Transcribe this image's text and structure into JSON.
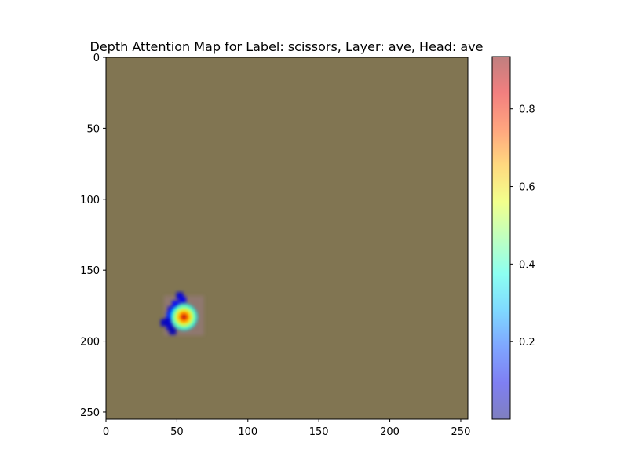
{
  "chart_data": {
    "type": "heatmap",
    "title": "Depth Attention Map for Label: scissors, Layer: ave, Head: ave",
    "xlabel": "",
    "ylabel": "",
    "xlim": [
      0,
      255
    ],
    "ylim": [
      255,
      0
    ],
    "x_ticks": [
      0,
      50,
      100,
      150,
      200,
      250
    ],
    "y_ticks": [
      0,
      50,
      100,
      150,
      200,
      250
    ],
    "background_color": "#817552",
    "hotspot": {
      "x": 55,
      "y": 183,
      "peak": 0.93
    },
    "blue_blobs": [
      {
        "x": 52,
        "y": 168,
        "v": 0.08
      },
      {
        "x": 54,
        "y": 171,
        "v": 0.1
      },
      {
        "x": 49,
        "y": 174,
        "v": 0.12
      },
      {
        "x": 46,
        "y": 178,
        "v": 0.1
      },
      {
        "x": 45,
        "y": 182,
        "v": 0.15
      },
      {
        "x": 44,
        "y": 186,
        "v": 0.08
      },
      {
        "x": 41,
        "y": 187,
        "v": 0.06
      },
      {
        "x": 45,
        "y": 190,
        "v": 0.07
      },
      {
        "x": 47,
        "y": 193,
        "v": 0.05
      },
      {
        "x": 49,
        "y": 180,
        "v": 0.22
      }
    ],
    "colorbar": {
      "vmin": 0.0,
      "vmax": 0.935,
      "ticks": [
        0.2,
        0.4,
        0.6,
        0.8
      ],
      "tick_labels": [
        "0.2",
        "0.4",
        "0.6",
        "0.8"
      ],
      "colormap": "jet",
      "alpha": 0.5
    },
    "grid": false
  },
  "tick_labels": {
    "x": [
      "0",
      "50",
      "100",
      "150",
      "200",
      "250"
    ],
    "y": [
      "0",
      "50",
      "100",
      "150",
      "200",
      "250"
    ]
  }
}
